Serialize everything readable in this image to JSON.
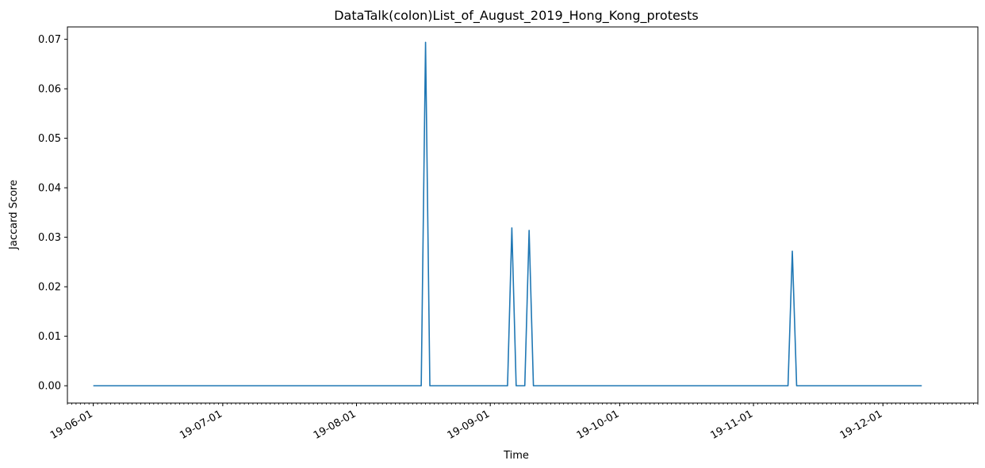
{
  "chart_data": {
    "type": "line",
    "title": "DataTalk(colon)List_of_August_2019_Hong_Kong_protests",
    "xlabel": "Time",
    "ylabel": "Jaccard Score",
    "xlim": [
      "2019-05-26",
      "2019-12-23"
    ],
    "ylim": [
      -0.0035,
      0.0725
    ],
    "x_ticks": [
      "2019-06-01",
      "2019-07-01",
      "2019-08-01",
      "2019-09-01",
      "2019-10-01",
      "2019-11-01",
      "2019-12-01"
    ],
    "x_tick_labels": [
      "19-06-01",
      "19-07-01",
      "19-08-01",
      "19-09-01",
      "19-10-01",
      "19-11-01",
      "19-12-01"
    ],
    "y_ticks": [
      0.0,
      0.01,
      0.02,
      0.03,
      0.04,
      0.05,
      0.06,
      0.07
    ],
    "y_tick_labels": [
      "0.00",
      "0.01",
      "0.02",
      "0.03",
      "0.04",
      "0.05",
      "0.06",
      "0.07"
    ],
    "grid": false,
    "line_color": "#1f77b4",
    "series": [
      {
        "x": [
          "2019-06-01",
          "2019-08-16",
          "2019-08-17",
          "2019-08-18",
          "2019-09-05",
          "2019-09-06",
          "2019-09-07",
          "2019-09-09",
          "2019-09-10",
          "2019-09-11",
          "2019-11-09",
          "2019-11-10",
          "2019-11-11",
          "2019-12-10"
        ],
        "values": [
          0.0,
          0.0,
          0.0694,
          0.0,
          0.0,
          0.0319,
          0.0,
          0.0,
          0.0314,
          0.0,
          0.0,
          0.0272,
          0.0,
          0.0
        ]
      }
    ]
  }
}
